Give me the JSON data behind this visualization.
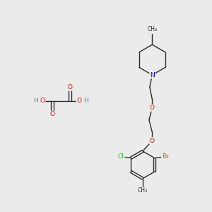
{
  "bg_color": "#ebebeb",
  "bond_color": "#2a2a2a",
  "atom_colors": {
    "N": "#0000ee",
    "O": "#ee0000",
    "Cl": "#22bb22",
    "Br": "#bb6600",
    "C": "#2a2a2a",
    "H": "#4a8888"
  },
  "font_size_atom": 6.5,
  "font_size_methyl": 5.5,
  "lw": 1.0
}
